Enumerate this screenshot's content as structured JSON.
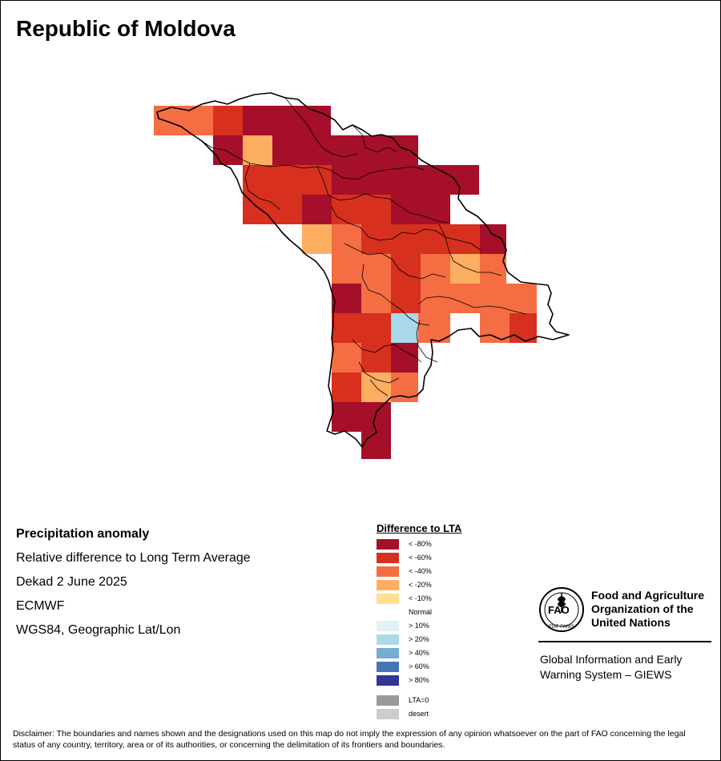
{
  "map": {
    "title": "Republic of Moldova",
    "variable": "Precipitation anomaly",
    "measure": "Relative difference to Long Term Average",
    "period": "Dekad 2 June 2025",
    "source": "ECMWF",
    "projection": "WGS84, Geographic Lat/Lon",
    "country_border_color": "#000000",
    "grid_cells_legend_class_counts": {
      "lt_-80": "dark red cells",
      "lt_-60": "red cells",
      "lt_-40": "orange cells",
      "lt_-20": "light orange cells",
      "gt_20": "light blue cells"
    }
  },
  "legend": {
    "title": "Difference to LTA",
    "items": [
      {
        "label": "< -80%",
        "color": "#A50F2A"
      },
      {
        "label": "< -60%",
        "color": "#D7301F"
      },
      {
        "label": "< -40%",
        "color": "#F46D43"
      },
      {
        "label": "< -20%",
        "color": "#FDAE61"
      },
      {
        "label": "< -10%",
        "color": "#FEE090"
      },
      {
        "label": "Normal",
        "color": "#FFFFFF"
      },
      {
        "label": "> 10%",
        "color": "#DEF2F7"
      },
      {
        "label": "> 20%",
        "color": "#ABD9E9"
      },
      {
        "label": "> 40%",
        "color": "#74ADD1"
      },
      {
        "label": "> 60%",
        "color": "#4575B4"
      },
      {
        "label": "> 80%",
        "color": "#313695"
      }
    ],
    "extra": [
      {
        "label": "LTA=0",
        "color": "#999999"
      },
      {
        "label": "desert",
        "color": "#CCCCCC"
      }
    ]
  },
  "org": {
    "logo_text": "FAO",
    "logo_motto": "FIAT PANIS",
    "name": "Food and Agriculture Organization of the United Nations",
    "system": "Global Information and Early Warning System – GIEWS"
  },
  "disclaimer": "Disclaimer: The boundaries and names shown and the designations used on this map do not imply the expression of any opinion whatsoever on the part of FAO concerning the legal status of any country, territory, area or of its authorities, or concerning the delimitation of its frontiers and boundaries."
}
